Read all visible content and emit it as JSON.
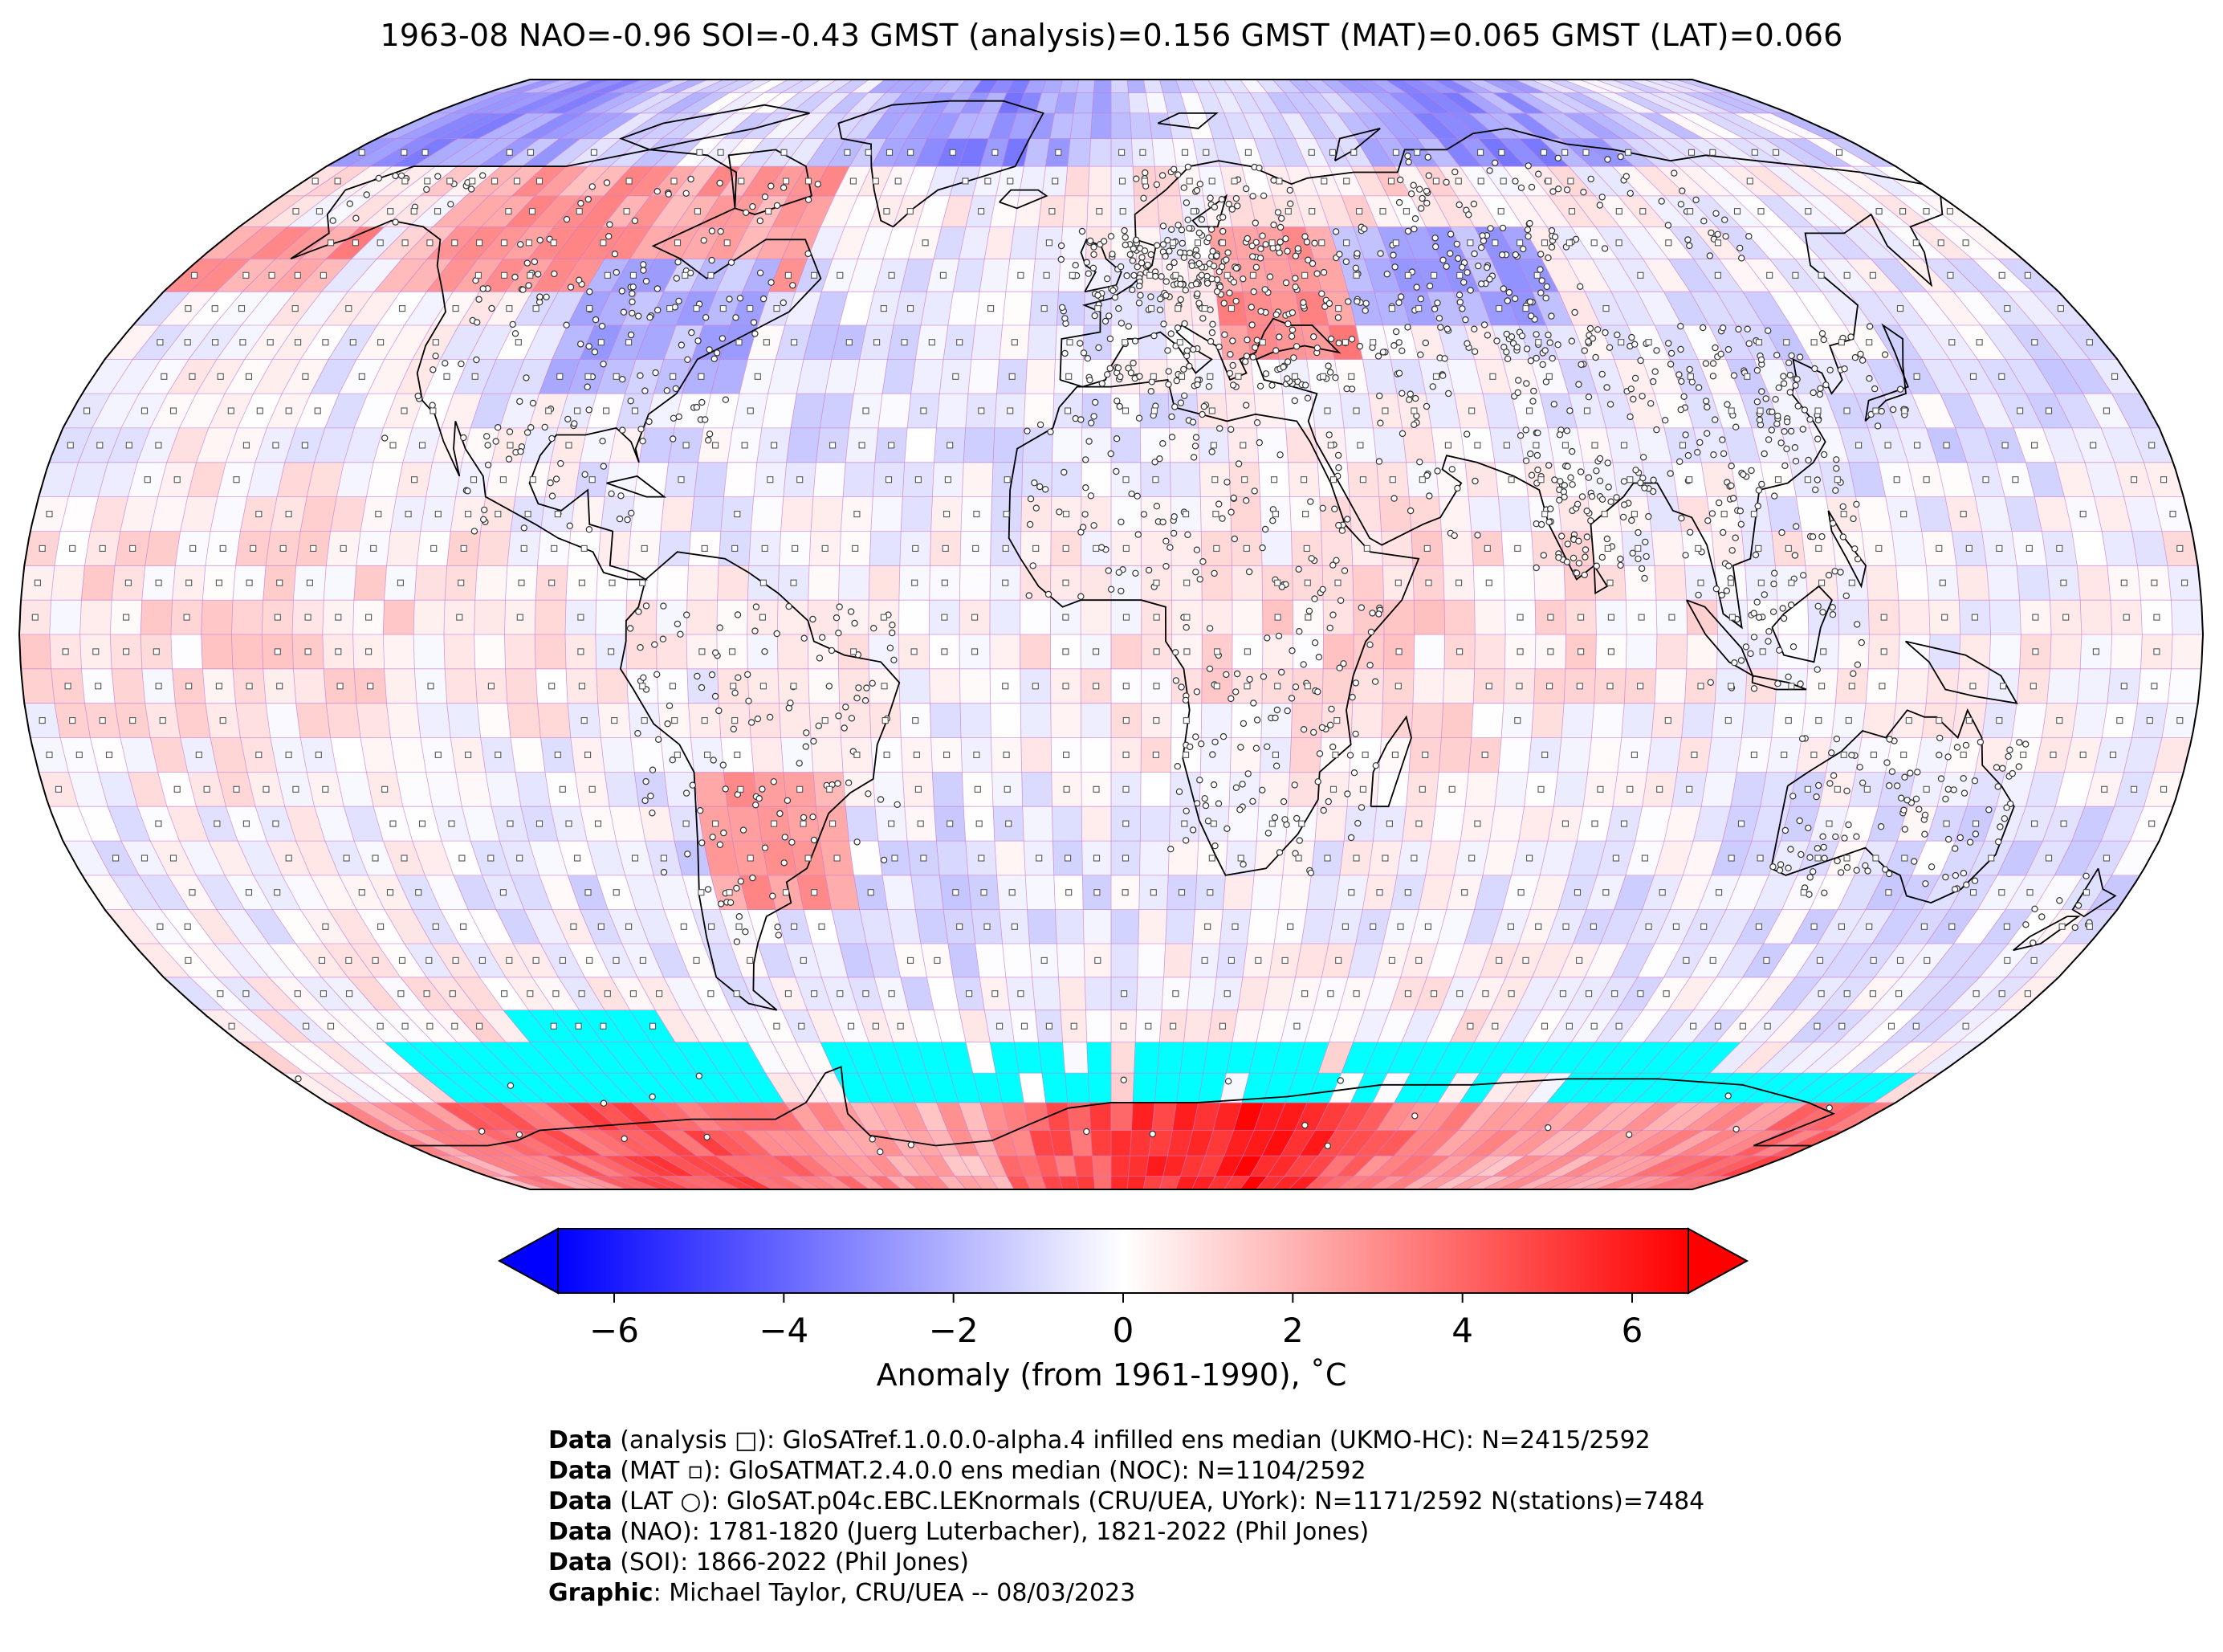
{
  "title": "1963-08 NAO=-0.96 SOI=-0.43 GMST (analysis)=0.156 GMST (MAT)=0.065 GMST (LAT)=0.066",
  "colorbar": {
    "label": "Anomaly (from 1961-1990), ˚C",
    "ticks": [
      "−6",
      "−4",
      "−2",
      "0",
      "2",
      "4",
      "6"
    ],
    "tick_values": [
      -6,
      -4,
      -2,
      0,
      2,
      4,
      6
    ],
    "range": [
      -6,
      6
    ],
    "colors": {
      "low": "#0000ff",
      "mid": "#ffffff",
      "high": "#ff0000",
      "missing": "#00ffff"
    }
  },
  "map": {
    "projection": "Robinson",
    "grid_color": "#c77bd2",
    "markers": {
      "analysis": "square",
      "MAT": "small-square",
      "LAT": "circle"
    }
  },
  "credits": [
    {
      "bold": "Data",
      "text": " (analysis □): GloSATref.1.0.0.0-alpha.4 infilled ens median (UKMO-HC): N=2415/2592"
    },
    {
      "bold": "Data",
      "text": " (MAT ▫): GloSATMAT.2.4.0.0 ens median (NOC): N=1104/2592"
    },
    {
      "bold": "Data",
      "text": " (LAT ○): GloSAT.p04c.EBC.LEKnormals (CRU/UEA, UYork): N=1171/2592 N(stations)=7484"
    },
    {
      "bold": "Data",
      "text": " (NAO): 1781-1820 (Juerg Luterbacher), 1821-2022 (Phil Jones)"
    },
    {
      "bold": "Data",
      "text": " (SOI): 1866-2022 (Phil Jones)"
    },
    {
      "bold": "Graphic",
      "text": ": Michael Taylor, CRU/UEA -- 08/03/2023"
    }
  ]
}
